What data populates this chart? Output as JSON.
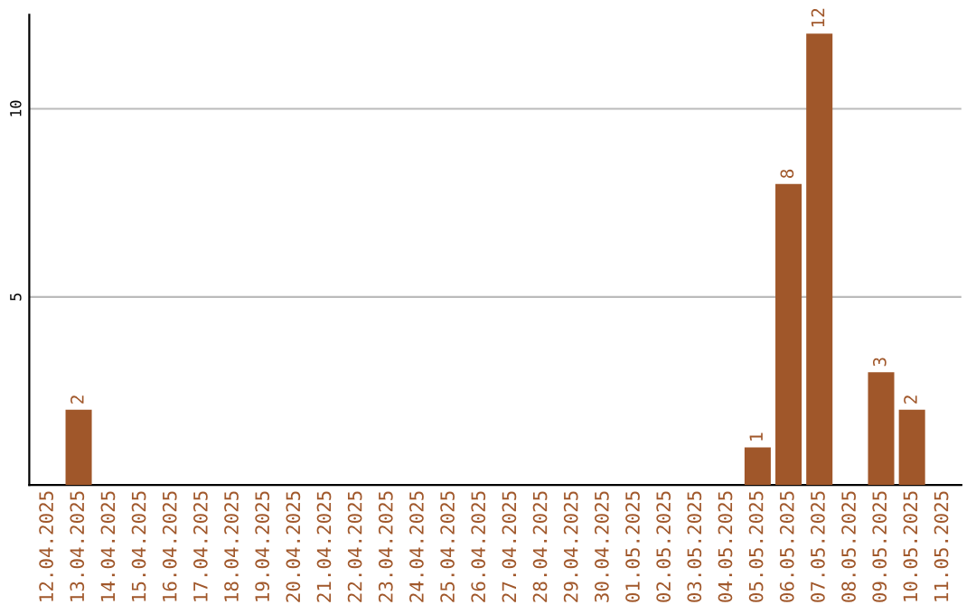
{
  "chart_data": {
    "type": "bar",
    "categories": [
      "12.04.2025",
      "13.04.2025",
      "14.04.2025",
      "15.04.2025",
      "16.04.2025",
      "17.04.2025",
      "18.04.2025",
      "19.04.2025",
      "20.04.2025",
      "21.04.2025",
      "22.04.2025",
      "23.04.2025",
      "24.04.2025",
      "25.04.2025",
      "26.04.2025",
      "27.04.2025",
      "28.04.2025",
      "29.04.2025",
      "30.04.2025",
      "01.05.2025",
      "02.05.2025",
      "03.05.2025",
      "04.05.2025",
      "05.05.2025",
      "06.05.2025",
      "07.05.2025",
      "08.05.2025",
      "09.05.2025",
      "10.05.2025",
      "11.05.2025"
    ],
    "series": [
      {
        "color": "#a0572a",
        "values": [
          0,
          2,
          0,
          0,
          0,
          0,
          0,
          0,
          0,
          0,
          0,
          0,
          0,
          0,
          0,
          0,
          0,
          0,
          0,
          0,
          0,
          0,
          0,
          1,
          8,
          12,
          0,
          3,
          2,
          0
        ],
        "value_labels": [
          null,
          "2",
          null,
          null,
          null,
          null,
          null,
          null,
          null,
          null,
          null,
          null,
          null,
          null,
          null,
          null,
          null,
          null,
          null,
          null,
          null,
          null,
          null,
          "1",
          "8",
          "12",
          null,
          "3",
          "2",
          null
        ]
      }
    ],
    "ylim": [
      0,
      12.5
    ],
    "yticks": [
      5,
      10
    ],
    "grid": "y"
  }
}
